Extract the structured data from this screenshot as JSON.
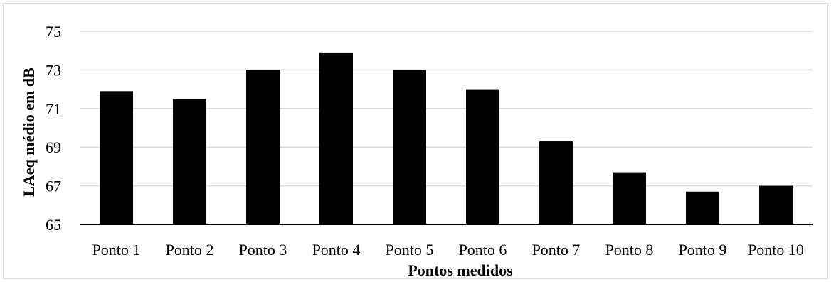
{
  "chart_data": {
    "type": "bar",
    "categories": [
      "Ponto 1",
      "Ponto 2",
      "Ponto 3",
      "Ponto 4",
      "Ponto 5",
      "Ponto 6",
      "Ponto 7",
      "Ponto 8",
      "Ponto 9",
      "Ponto 10"
    ],
    "values": [
      71.9,
      71.5,
      73.0,
      73.9,
      73.0,
      72.0,
      69.3,
      67.7,
      66.7,
      67.0
    ],
    "xlabel": "Pontos medidos",
    "ylabel": "LAeq médio em dB",
    "ylim": [
      65,
      75
    ],
    "yticks": [
      "65",
      "67",
      "69",
      "71",
      "73",
      "75"
    ],
    "grid": true,
    "bar_color": "#000000",
    "grid_color": "#d9d9d9"
  }
}
